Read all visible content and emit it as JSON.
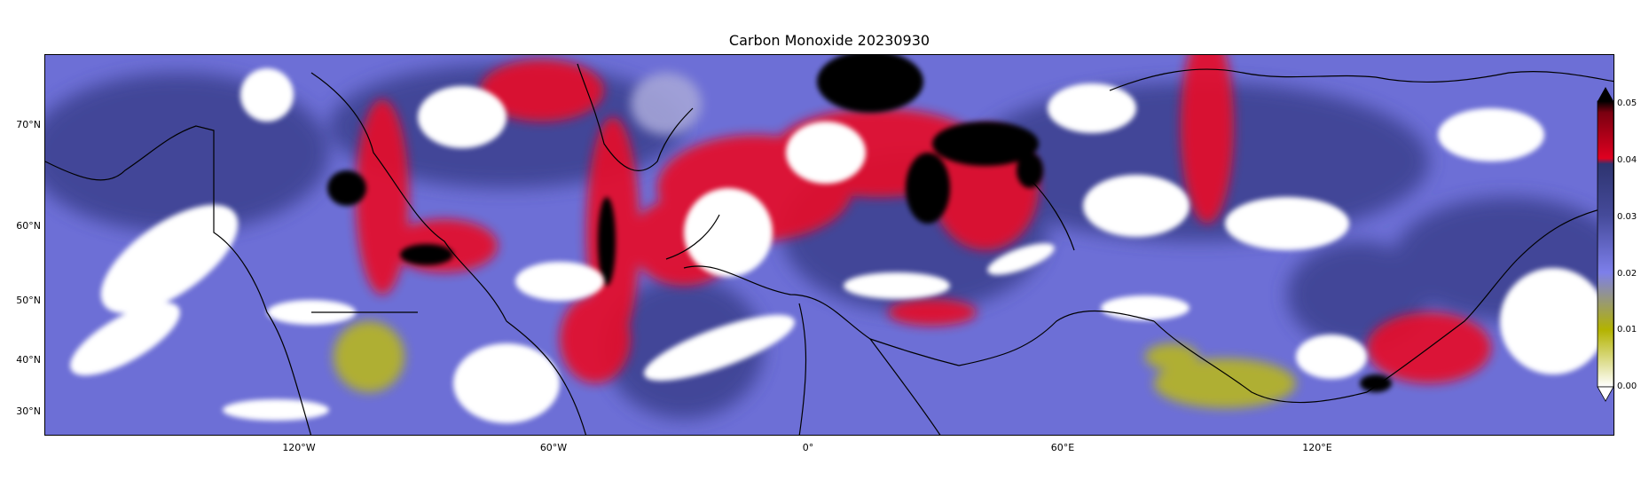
{
  "title": "Carbon Monoxide 20230930",
  "lat_labels": [
    "70°N",
    "60°N",
    "50°N",
    "40°N",
    "30°N"
  ],
  "lon_labels": [
    "120°W",
    "60°W",
    "0°",
    "60°E",
    "120°E"
  ],
  "colorbar": {
    "ticks": [
      "0.05",
      "0.04",
      "0.03",
      "0.02",
      "0.01",
      "0.00"
    ],
    "colors": [
      "#ffffff",
      "#b3b300",
      "#6e70e8",
      "#3b3b8a",
      "#e00020",
      "#000000"
    ]
  },
  "map": {
    "colors": {
      "background": "#6e6fdc",
      "dark": "#3c3f92",
      "red": "#e8102c",
      "black": "#000000",
      "olive": "#b8b820",
      "cloud": "#ffffff"
    }
  }
}
